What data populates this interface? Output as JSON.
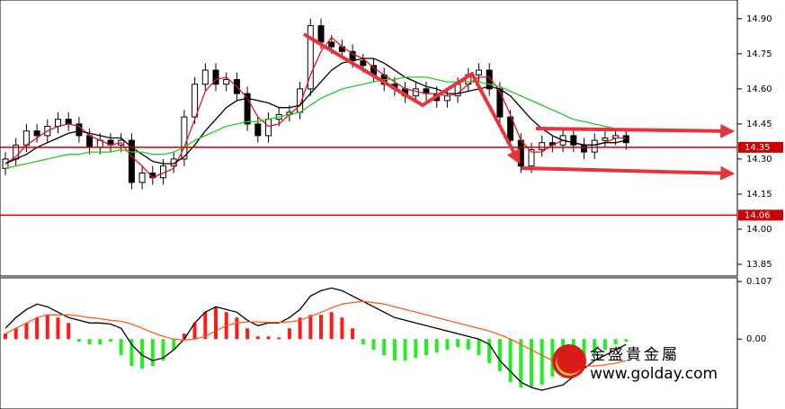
{
  "chart_data": [
    {
      "type": "candlestick",
      "open": [
        14.26,
        14.3,
        14.36,
        14.42,
        14.4,
        14.44,
        14.47,
        14.45,
        14.4,
        14.35,
        14.38,
        14.36,
        14.38,
        14.2,
        14.24,
        14.22,
        14.27,
        14.3,
        14.48,
        14.62,
        14.68,
        14.62,
        14.64,
        14.58,
        14.45,
        14.4,
        14.47,
        14.49,
        14.5,
        14.6,
        14.87,
        14.8,
        14.78,
        14.76,
        14.72,
        14.7,
        14.66,
        14.62,
        14.6,
        14.57,
        14.6,
        14.58,
        14.55,
        14.57,
        14.62,
        14.66,
        14.68,
        14.6,
        14.48,
        14.38,
        14.27,
        14.34,
        14.37,
        14.36,
        14.4,
        14.36,
        14.33,
        14.38,
        14.39,
        14.4
      ],
      "high": [
        14.33,
        14.39,
        14.45,
        14.45,
        14.47,
        14.5,
        14.5,
        14.48,
        14.43,
        14.41,
        14.41,
        14.41,
        14.41,
        14.27,
        14.27,
        14.3,
        14.33,
        14.51,
        14.65,
        14.71,
        14.71,
        14.67,
        14.67,
        14.61,
        14.48,
        14.5,
        14.52,
        14.53,
        14.63,
        14.9,
        14.9,
        14.83,
        14.81,
        14.79,
        14.75,
        14.73,
        14.69,
        14.65,
        14.63,
        14.63,
        14.63,
        14.61,
        14.6,
        14.65,
        14.69,
        14.71,
        14.71,
        14.63,
        14.51,
        14.41,
        14.37,
        14.4,
        14.4,
        14.43,
        14.43,
        14.39,
        14.41,
        14.42,
        14.43,
        14.43
      ],
      "low": [
        14.23,
        14.27,
        14.33,
        14.37,
        14.37,
        14.41,
        14.42,
        14.37,
        14.32,
        14.32,
        14.33,
        14.33,
        14.17,
        14.17,
        14.19,
        14.19,
        14.24,
        14.27,
        14.45,
        14.59,
        14.59,
        14.59,
        14.55,
        14.42,
        14.37,
        14.37,
        14.44,
        14.46,
        14.47,
        14.57,
        14.77,
        14.75,
        14.73,
        14.69,
        14.67,
        14.63,
        14.59,
        14.57,
        14.54,
        14.54,
        14.55,
        14.52,
        14.52,
        14.54,
        14.59,
        14.63,
        14.57,
        14.45,
        14.35,
        14.24,
        14.24,
        14.31,
        14.33,
        14.33,
        14.33,
        14.3,
        14.3,
        14.35,
        14.36,
        14.34
      ],
      "close": [
        14.3,
        14.36,
        14.42,
        14.4,
        14.44,
        14.47,
        14.45,
        14.4,
        14.35,
        14.38,
        14.36,
        14.38,
        14.2,
        14.24,
        14.22,
        14.27,
        14.3,
        14.48,
        14.62,
        14.68,
        14.62,
        14.64,
        14.58,
        14.45,
        14.4,
        14.47,
        14.49,
        14.5,
        14.6,
        14.87,
        14.8,
        14.78,
        14.76,
        14.72,
        14.7,
        14.66,
        14.62,
        14.6,
        14.57,
        14.6,
        14.58,
        14.55,
        14.57,
        14.62,
        14.66,
        14.68,
        14.6,
        14.48,
        14.38,
        14.27,
        14.34,
        14.37,
        14.36,
        14.4,
        14.36,
        14.33,
        14.38,
        14.39,
        14.4,
        14.37
      ],
      "series": [
        {
          "color": "#e8102a",
          "values": [
            14.28,
            14.31,
            14.36,
            14.39,
            14.42,
            14.44,
            14.45,
            14.44,
            14.4,
            14.38,
            14.36,
            14.37,
            14.31,
            14.27,
            14.22,
            14.24,
            14.26,
            14.35,
            14.47,
            14.59,
            14.64,
            14.65,
            14.61,
            14.56,
            14.48,
            14.44,
            14.45,
            14.49,
            14.53,
            14.66,
            14.76,
            14.82,
            14.78,
            14.75,
            14.73,
            14.69,
            14.66,
            14.63,
            14.6,
            14.59,
            14.58,
            14.58,
            14.57,
            14.58,
            14.62,
            14.65,
            14.65,
            14.59,
            14.49,
            14.38,
            14.33,
            14.33,
            14.36,
            14.38,
            14.37,
            14.36,
            14.36,
            14.37,
            14.39,
            14.39
          ]
        },
        {
          "color": "#000000",
          "values": [
            14.28,
            14.3,
            14.32,
            14.35,
            14.37,
            14.39,
            14.41,
            14.42,
            14.41,
            14.4,
            14.39,
            14.39,
            14.35,
            14.32,
            14.29,
            14.28,
            14.28,
            14.31,
            14.36,
            14.42,
            14.47,
            14.52,
            14.55,
            14.56,
            14.55,
            14.54,
            14.52,
            14.52,
            14.53,
            14.58,
            14.63,
            14.68,
            14.71,
            14.72,
            14.73,
            14.73,
            14.71,
            14.68,
            14.65,
            14.63,
            14.61,
            14.6,
            14.58,
            14.58,
            14.59,
            14.6,
            14.61,
            14.6,
            14.57,
            14.52,
            14.47,
            14.43,
            14.4,
            14.38,
            14.37,
            14.36,
            14.36,
            14.37,
            14.37,
            14.38
          ]
        },
        {
          "color": "#22cc22",
          "values": [
            14.26,
            14.27,
            14.28,
            14.29,
            14.3,
            14.31,
            14.32,
            14.32,
            14.33,
            14.33,
            14.33,
            14.34,
            14.33,
            14.33,
            14.32,
            14.32,
            14.33,
            14.35,
            14.38,
            14.4,
            14.42,
            14.44,
            14.45,
            14.46,
            14.46,
            14.47,
            14.48,
            14.49,
            14.5,
            14.53,
            14.56,
            14.58,
            14.6,
            14.61,
            14.62,
            14.63,
            14.64,
            14.64,
            14.65,
            14.65,
            14.65,
            14.64,
            14.63,
            14.63,
            14.63,
            14.63,
            14.62,
            14.61,
            14.59,
            14.57,
            14.55,
            14.53,
            14.51,
            14.49,
            14.47,
            14.46,
            14.45,
            14.44,
            14.43,
            14.42
          ]
        }
      ],
      "levels": [
        14.35,
        14.06
      ],
      "level_color": "#cc0000",
      "ylim": [
        13.8,
        14.98
      ],
      "yticks": [
        13.85,
        {
          "value": 14,
          "label": "14.00"
        },
        14.15,
        {
          "value": 14.3,
          "label": "14.30"
        },
        14.45,
        {
          "value": 14.6,
          "label": "14.60"
        },
        14.75,
        {
          "value": 14.9,
          "label": "14.90"
        }
      ]
    },
    {
      "type": "macd",
      "values": [
        0.01,
        0.02,
        0.03,
        0.04,
        0.045,
        0.04,
        0.03,
        -0.005,
        -0.01,
        -0.01,
        -0.005,
        -0.03,
        -0.05,
        -0.055,
        -0.05,
        -0.04,
        -0.02,
        0.01,
        0.03,
        0.05,
        0.06,
        0.05,
        0.04,
        0.02,
        0.005,
        0.005,
        0.003,
        0.02,
        0.04,
        0.045,
        0.045,
        0.05,
        0.04,
        0.02,
        -0.01,
        -0.02,
        -0.03,
        -0.04,
        -0.04,
        -0.035,
        -0.03,
        -0.025,
        -0.02,
        -0.015,
        -0.02,
        -0.03,
        -0.045,
        -0.06,
        -0.08,
        -0.09,
        -0.09,
        -0.085,
        -0.07,
        -0.06,
        -0.05,
        -0.04,
        -0.03,
        -0.02,
        -0.01,
        -0.005
      ],
      "series": [
        {
          "color": "#000000",
          "values": [
            0.02,
            0.04,
            0.055,
            0.065,
            0.06,
            0.05,
            0.04,
            0.035,
            0.03,
            0.03,
            0.028,
            0.02,
            -0.01,
            -0.03,
            -0.04,
            -0.035,
            -0.02,
            0.0,
            0.03,
            0.05,
            0.06,
            0.055,
            0.05,
            0.035,
            0.025,
            0.03,
            0.03,
            0.04,
            0.055,
            0.08,
            0.09,
            0.095,
            0.09,
            0.08,
            0.07,
            0.06,
            0.05,
            0.04,
            0.035,
            0.03,
            0.025,
            0.02,
            0.015,
            0.01,
            0.005,
            0.0,
            -0.01,
            -0.04,
            -0.06,
            -0.08,
            -0.09,
            -0.095,
            -0.09,
            -0.085,
            -0.07,
            -0.055,
            -0.04,
            -0.03,
            -0.02,
            -0.01
          ]
        },
        {
          "color": "#ff5a1e",
          "values": [
            0.01,
            0.02,
            0.03,
            0.04,
            0.045,
            0.045,
            0.045,
            0.043,
            0.04,
            0.038,
            0.035,
            0.033,
            0.028,
            0.02,
            0.012,
            0.005,
            0.0,
            -0.002,
            0.0,
            0.005,
            0.015,
            0.025,
            0.03,
            0.032,
            0.032,
            0.031,
            0.031,
            0.032,
            0.035,
            0.042,
            0.05,
            0.058,
            0.065,
            0.068,
            0.07,
            0.068,
            0.065,
            0.06,
            0.055,
            0.05,
            0.045,
            0.04,
            0.035,
            0.03,
            0.025,
            0.02,
            0.015,
            0.008,
            0.0,
            -0.01,
            -0.02,
            -0.03,
            -0.04,
            -0.045,
            -0.048,
            -0.05,
            -0.05,
            -0.048,
            -0.045,
            -0.04
          ]
        }
      ],
      "positive_color": "#ff1a1a",
      "negative_color": "#22ee22",
      "ylim": [
        -0.13,
        0.114
      ],
      "yticks": [
        0.107,
        {
          "value": 0,
          "label": "0.00"
        }
      ]
    }
  ],
  "watermark": {
    "name": "金盛貴金屬",
    "url": "www.golday.com"
  }
}
